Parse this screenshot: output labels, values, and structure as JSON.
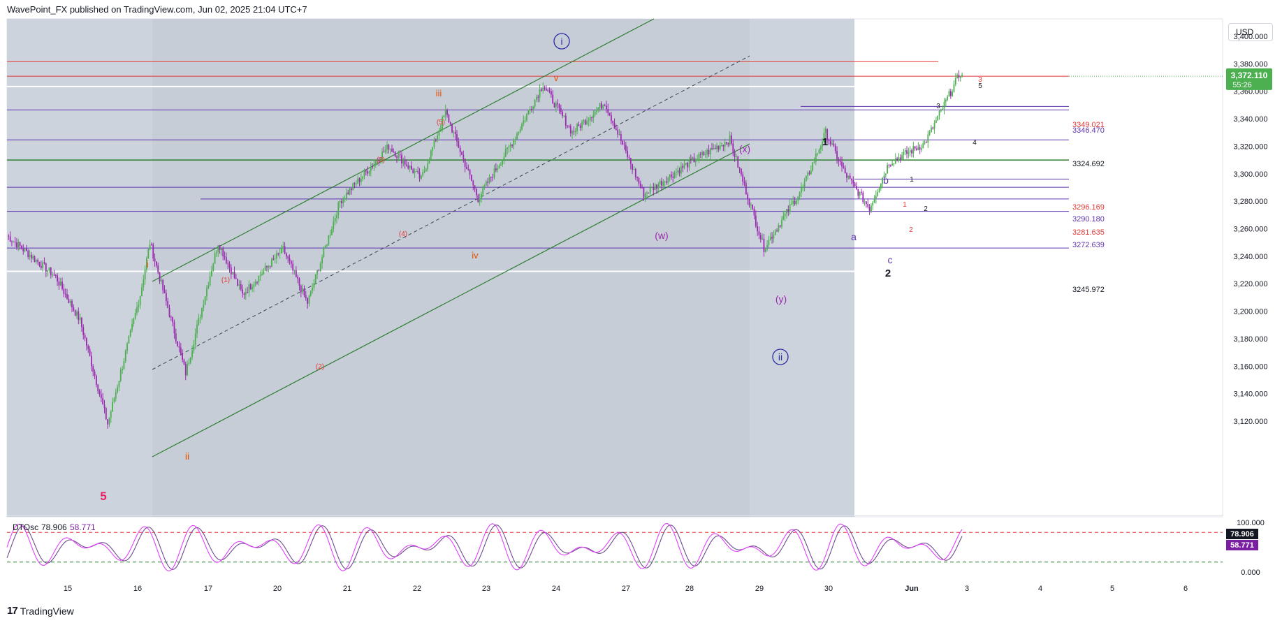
{
  "header": "WavePoint_FX published on TradingView.com, Jun 02, 2025 21:04 UTC+7",
  "footer": {
    "logo_glyph": "17",
    "brand": "TradingView"
  },
  "currency": "USD",
  "price_axis": {
    "ticks": [
      "3,400.000",
      "3,380.000",
      "3,360.000",
      "3,340.000",
      "3,320.000",
      "3,300.000",
      "3,280.000",
      "3,260.000",
      "3,240.000",
      "3,220.000",
      "3,200.000",
      "3,180.000",
      "3,160.000",
      "3,140.000",
      "3,120.000"
    ],
    "current_price": "3,372.110",
    "countdown": "55:26"
  },
  "osc_axis": {
    "ticks": [
      "100.000",
      "0.000"
    ],
    "k_value": "78.906",
    "d_value": "58.771"
  },
  "time_axis": [
    "15",
    "16",
    "17",
    "20",
    "21",
    "22",
    "23",
    "24",
    "27",
    "28",
    "29",
    "30",
    "Jun",
    "3",
    "4",
    "5",
    "6"
  ],
  "oscillator_legend": {
    "name": "DTOsc",
    "k": "78.906",
    "d": "58.771"
  },
  "level_labels": [
    {
      "text": "3349.021",
      "color": "#e53935"
    },
    {
      "text": "3346.470",
      "color": "#5e35b1"
    },
    {
      "text": "3324.692",
      "color": "#131722"
    },
    {
      "text": "3296.169",
      "color": "#e53935"
    },
    {
      "text": "3290.180",
      "color": "#5e35b1"
    },
    {
      "text": "3281.635",
      "color": "#e53935"
    },
    {
      "text": "3272.639",
      "color": "#5e35b1"
    },
    {
      "text": "3245.972",
      "color": "#131722"
    }
  ],
  "wave_labels": [
    {
      "text": "i",
      "color": "#2a2aa5"
    },
    {
      "text": "ii",
      "color": "#2a2aa5"
    },
    {
      "text": "5",
      "color": "#e91e63"
    },
    {
      "text": "i",
      "color": "#e65100"
    },
    {
      "text": "ii",
      "color": "#e65100"
    },
    {
      "text": "iii",
      "color": "#e65100"
    },
    {
      "text": "iv",
      "color": "#e65100"
    },
    {
      "text": "v",
      "color": "#e65100"
    },
    {
      "text": "(1)",
      "color": "#e53935"
    },
    {
      "text": "(2)",
      "color": "#e53935"
    },
    {
      "text": "(3)",
      "color": "#e53935"
    },
    {
      "text": "(4)",
      "color": "#e53935"
    },
    {
      "text": "(5)",
      "color": "#e53935"
    },
    {
      "text": "(w)",
      "color": "#9c27b0"
    },
    {
      "text": "(x)",
      "color": "#9c27b0"
    },
    {
      "text": "(y)",
      "color": "#9c27b0"
    },
    {
      "text": "1",
      "color": "#131722"
    },
    {
      "text": "2",
      "color": "#131722"
    },
    {
      "text": "a",
      "color": "#5e35b1"
    },
    {
      "text": "b",
      "color": "#5e35b1"
    },
    {
      "text": "c",
      "color": "#5e35b1"
    },
    {
      "text": "1",
      "color": "#131722"
    },
    {
      "text": "2",
      "color": "#131722"
    },
    {
      "text": "3",
      "color": "#131722"
    },
    {
      "text": "4",
      "color": "#131722"
    },
    {
      "text": "5",
      "color": "#131722"
    },
    {
      "text": "1",
      "color": "#e53935"
    },
    {
      "text": "2",
      "color": "#e53935"
    },
    {
      "text": "3",
      "color": "#e53935"
    }
  ],
  "colors": {
    "up": "#4caf50",
    "down": "#9c27b0",
    "channel": "#2e7d32",
    "level_purple": "#5e35b1",
    "level_red": "#e53935",
    "level_green": "#2e7d32",
    "osc_k": "#e040fb",
    "osc_d": "#6d4c8c",
    "badge": "#4caf50"
  },
  "chart_data": {
    "type": "candlestick",
    "symbol": "Gold / USD",
    "price_range": [
      3110,
      3410
    ],
    "price_levels": [
      3349.021,
      3346.47,
      3324.692,
      3296.169,
      3290.18,
      3281.635,
      3272.639,
      3245.972
    ],
    "current_price": 3372.11,
    "oscillator": {
      "name": "DTOsc",
      "k": 78.906,
      "d": 58.771,
      "range": [
        0,
        100
      ]
    },
    "swing_path": [
      [
        0,
        3255
      ],
      [
        30,
        3225
      ],
      [
        45,
        3193
      ],
      [
        62,
        3118
      ],
      [
        82,
        3212
      ],
      [
        88,
        3250
      ],
      [
        110,
        3155
      ],
      [
        130,
        3250
      ],
      [
        145,
        3212
      ],
      [
        170,
        3245
      ],
      [
        185,
        3206
      ],
      [
        205,
        3280
      ],
      [
        235,
        3320
      ],
      [
        255,
        3296
      ],
      [
        270,
        3345
      ],
      [
        290,
        3282
      ],
      [
        312,
        3325
      ],
      [
        330,
        3365
      ],
      [
        348,
        3330
      ],
      [
        368,
        3352
      ],
      [
        392,
        3285
      ],
      [
        420,
        3308
      ],
      [
        445,
        3325
      ],
      [
        466,
        3246
      ],
      [
        490,
        3290
      ],
      [
        504,
        3330
      ],
      [
        516,
        3300
      ],
      [
        531,
        3275
      ],
      [
        543,
        3308
      ],
      [
        565,
        3322
      ],
      [
        588,
        3376
      ]
    ]
  }
}
